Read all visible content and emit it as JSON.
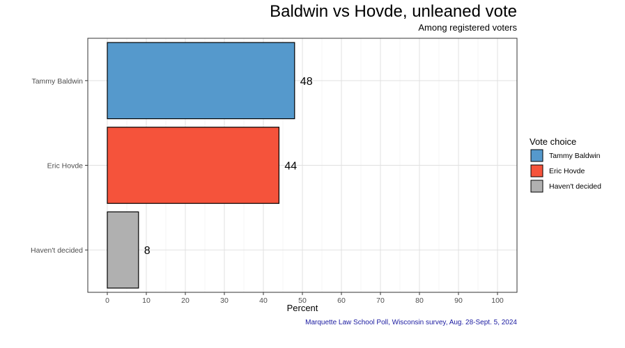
{
  "chart_data": {
    "type": "bar",
    "orientation": "horizontal",
    "title": "Baldwin vs Hovde, unleaned vote",
    "subtitle": "Among registered voters",
    "xlabel": "Percent",
    "ylabel": "",
    "categories": [
      "Tammy Baldwin",
      "Eric Hovde",
      "Haven't decided"
    ],
    "values": [
      48,
      44,
      8
    ],
    "data_labels": [
      "48",
      "44",
      "8"
    ],
    "colors": [
      "#5599cc",
      "#f5533b",
      "#b0b0b0"
    ],
    "xlim": [
      -5,
      105
    ],
    "xticks": [
      0,
      10,
      20,
      30,
      40,
      50,
      60,
      70,
      80,
      90,
      100
    ],
    "grid": true,
    "legend": {
      "title": "Vote choice",
      "position": "right",
      "entries": [
        "Tammy Baldwin",
        "Eric Hovde",
        "Haven't decided"
      ]
    },
    "caption": "Marquette Law School Poll, Wisconsin survey, Aug. 28-Sept. 5, 2024",
    "caption_color": "#1a1aa0"
  }
}
